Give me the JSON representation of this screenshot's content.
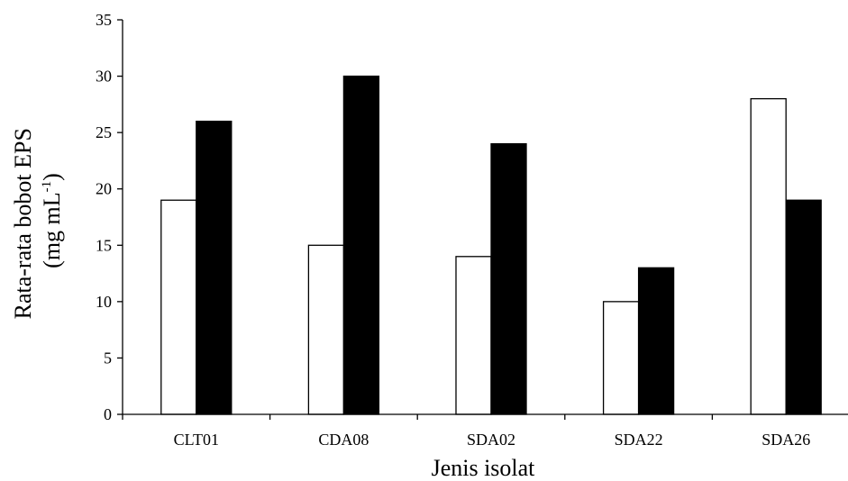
{
  "chart_data": {
    "type": "bar",
    "categories": [
      "CLT01",
      "CDA08",
      "SDA02",
      "SDA22",
      "SDA26"
    ],
    "series": [
      {
        "values": [
          19,
          15,
          14,
          10,
          28
        ],
        "fill": "#ffffff",
        "stroke": "#000000"
      },
      {
        "values": [
          26,
          30,
          24,
          13,
          19
        ],
        "fill": "#000000",
        "stroke": "#000000"
      }
    ],
    "xlabel": "Jenis isolat",
    "ylabel_line1": "Rata-rata bobot EPS",
    "ylabel_line2_main": "(mg mL",
    "ylabel_line2_sup": "-1",
    "ylabel_line2_end": ")",
    "ylim": [
      0,
      35
    ],
    "yticks": [
      "0",
      "5",
      "10",
      "15",
      "20",
      "25",
      "30",
      "35"
    ],
    "grid": false,
    "legend": "none"
  }
}
